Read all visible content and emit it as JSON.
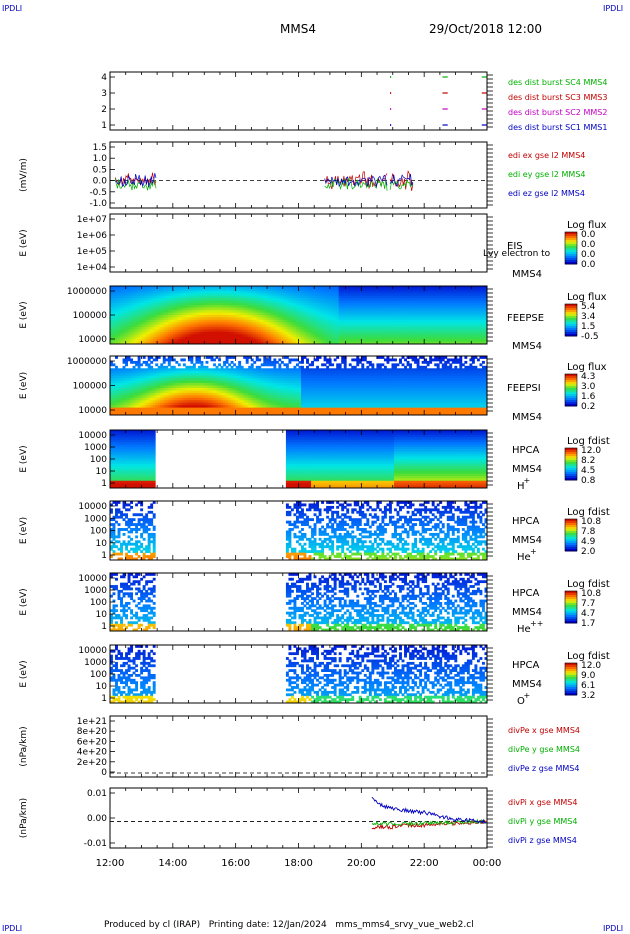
{
  "header": {
    "corner_tl": "IPDLI",
    "corner_tr": "IPDLI",
    "corner_bl": "IPDLI",
    "corner_br": "IPDLI",
    "spacecraft": "MMS4",
    "datetime": "29/Oct/2018 12:00"
  },
  "footer": {
    "produced_by": "Produced by cl (IRAP)",
    "printing_date": "Printing date: 12/Jan/2024",
    "script_name": "mms_mms4_srvy_vue_web2.cl"
  },
  "colors": {
    "panel_border": "#000000",
    "spectrogram_min": "#0000c8",
    "spectrogram_max": "#d21000",
    "red": "#c00000",
    "green": "#00b000",
    "blue": "#0000c0",
    "magenta": "#c000c0"
  },
  "chart_data": [
    {
      "type": "line",
      "panel": "burst availability",
      "ylabel": "",
      "yticks": [
        "1",
        "2",
        "3",
        "4"
      ],
      "ylim": [
        0.5,
        4.5
      ],
      "xlim": [
        "12:00",
        "00:00"
      ],
      "series": [
        {
          "name": "des dist burst SC1 MMS1",
          "color": "#0000c0",
          "segments": [
            [
              "22:35",
              "22:45"
            ],
            [
              "23:50",
              "23:59"
            ]
          ],
          "y": 1
        },
        {
          "name": "des dist burst SC2 MMS2",
          "color": "#c000c0",
          "segments": [
            [
              "22:35",
              "22:45"
            ],
            [
              "23:50",
              "23:59"
            ]
          ],
          "y": 2
        },
        {
          "name": "des dist burst SC3 MMS3",
          "color": "#c00000",
          "segments": [
            [
              "22:35",
              "22:45"
            ],
            [
              "23:50",
              "23:59"
            ]
          ],
          "y": 3
        },
        {
          "name": "des dist burst SC4 MMS4",
          "color": "#00b000",
          "segments": [
            [
              "22:35",
              "22:45"
            ],
            [
              "23:50",
              "23:59"
            ]
          ],
          "y": 4
        }
      ]
    },
    {
      "type": "line",
      "panel": "EDI electric field",
      "ylabel": "(mV/m)",
      "yticks": [
        "-1.0",
        "-0.5",
        "0.0",
        "0.5",
        "1.0",
        "1.5"
      ],
      "ylim": [
        -1.0,
        1.5
      ],
      "series": [
        {
          "name": "edi ex gse l2 MMS4",
          "color": "#c00000",
          "intervals": [
            [
              "12:10",
              "13:30"
            ],
            [
              "18:50",
              "20:50"
            ],
            [
              "20:55",
              "21:40"
            ]
          ]
        },
        {
          "name": "edi ey gse l2 MMS4",
          "color": "#00b000",
          "intervals": [
            [
              "12:10",
              "13:30"
            ],
            [
              "18:50",
              "20:50"
            ],
            [
              "20:55",
              "21:40"
            ]
          ]
        },
        {
          "name": "edi ez gse l2 MMS4",
          "color": "#0000c0",
          "intervals": [
            [
              "12:10",
              "13:30"
            ],
            [
              "18:50",
              "20:50"
            ],
            [
              "20:55",
              "21:40"
            ]
          ]
        }
      ]
    },
    {
      "type": "heatmap",
      "panel": "EIS",
      "ylabel": "E (eV)",
      "yticks": [
        "1e+04",
        "1e+05",
        "1e+06",
        "1e+07"
      ],
      "label_lines": [
        "EIS",
        "MMS4"
      ],
      "overlay_text": "Lvy electron to",
      "colorbar_title": "Log flux",
      "colorbar_ticks": [
        "0.0",
        "0.0",
        "0.0",
        "0.0"
      ]
    },
    {
      "type": "heatmap",
      "panel": "FEEPS electrons",
      "ylabel": "E (eV)",
      "yticks": [
        "10000",
        "100000",
        "1000000"
      ],
      "label_lines": [
        "FEEPSE",
        "MMS4"
      ],
      "colorbar_title": "Log flux",
      "colorbar_ticks": [
        "5.4",
        "3.4",
        "1.5",
        "-0.5"
      ]
    },
    {
      "type": "heatmap",
      "panel": "FEEPS ions",
      "ylabel": "E (eV)",
      "yticks": [
        "10000",
        "100000",
        "1000000"
      ],
      "label_lines": [
        "FEEPSI",
        "MMS4"
      ],
      "colorbar_title": "Log flux",
      "colorbar_ticks": [
        "4.3",
        "3.0",
        "1.6",
        "0.2"
      ]
    },
    {
      "type": "heatmap",
      "panel": "HPCA H+",
      "ylabel": "E (eV)",
      "yticks": [
        "1",
        "10",
        "100",
        "1000",
        "10000"
      ],
      "label_lines": [
        "HPCA",
        "MMS4",
        "H",
        "+"
      ],
      "colorbar_title": "Log fdist",
      "colorbar_ticks": [
        "12.0",
        "8.2",
        "4.5",
        "0.8"
      ]
    },
    {
      "type": "heatmap",
      "panel": "HPCA He+",
      "ylabel": "E (eV)",
      "yticks": [
        "1",
        "10",
        "100",
        "1000",
        "10000"
      ],
      "label_lines": [
        "HPCA",
        "MMS4",
        "He",
        "+"
      ],
      "colorbar_title": "Log fdist",
      "colorbar_ticks": [
        "10.8",
        "7.8",
        "4.9",
        "2.0"
      ]
    },
    {
      "type": "heatmap",
      "panel": "HPCA He++",
      "ylabel": "E (eV)",
      "yticks": [
        "1",
        "10",
        "100",
        "1000",
        "10000"
      ],
      "label_lines": [
        "HPCA",
        "MMS4",
        "He",
        "++"
      ],
      "colorbar_title": "Log fdist",
      "colorbar_ticks": [
        "10.8",
        "7.7",
        "4.7",
        "1.7"
      ]
    },
    {
      "type": "heatmap",
      "panel": "HPCA O+",
      "ylabel": "E (eV)",
      "yticks": [
        "1",
        "10",
        "100",
        "1000",
        "10000"
      ],
      "label_lines": [
        "HPCA",
        "MMS4",
        "O",
        "+"
      ],
      "colorbar_title": "Log fdist",
      "colorbar_ticks": [
        "12.0",
        "9.0",
        "6.1",
        "3.2"
      ]
    },
    {
      "type": "line",
      "panel": "divPe",
      "ylabel": "(nPa/km)",
      "yticks": [
        "0",
        "2e+20",
        "4e+20",
        "6e+20",
        "8e+20",
        "1e+21"
      ],
      "ylim": [
        0,
        1.1e+21
      ],
      "series": [
        {
          "name": "divPe x gse MMS4",
          "color": "#c00000"
        },
        {
          "name": "divPe y gse MMS4",
          "color": "#00b000"
        },
        {
          "name": "divPe z gse MMS4",
          "color": "#0000c0"
        }
      ]
    },
    {
      "type": "line",
      "panel": "divPi",
      "ylabel": "(nPa/km)",
      "yticks": [
        "-0.01",
        "0.00",
        "0.01"
      ],
      "ylim": [
        -0.012,
        0.016
      ],
      "series": [
        {
          "name": "divPi x gse MMS4",
          "color": "#c00000",
          "x": [
            "20:20",
            "20:40",
            "21:00",
            "21:30",
            "22:00",
            "22:30",
            "23:00",
            "23:30",
            "00:00"
          ],
          "values": [
            -0.003,
            -0.003,
            -0.003,
            -0.002,
            -0.002,
            -0.001,
            -0.001,
            -0.0005,
            0.0
          ]
        },
        {
          "name": "divPi y gse MMS4",
          "color": "#00b000",
          "x": [
            "20:20",
            "20:40",
            "21:00",
            "21:30",
            "22:00",
            "22:30",
            "23:00",
            "23:30",
            "00:00"
          ],
          "values": [
            -0.001,
            -0.0015,
            -0.001,
            -0.0012,
            -0.001,
            -0.0008,
            -0.0005,
            0.0,
            0.0
          ]
        },
        {
          "name": "divPi z gse MMS4",
          "color": "#0000c0",
          "x": [
            "20:20",
            "20:40",
            "21:00",
            "21:30",
            "22:00",
            "22:30",
            "23:00",
            "23:30",
            "00:00"
          ],
          "values": [
            0.013,
            0.009,
            0.007,
            0.006,
            0.005,
            0.003,
            0.001,
            0.0005,
            0.0
          ]
        }
      ]
    }
  ],
  "xaxis": {
    "ticks": [
      "12:00",
      "14:00",
      "16:00",
      "18:00",
      "20:00",
      "22:00",
      "00:00"
    ]
  }
}
